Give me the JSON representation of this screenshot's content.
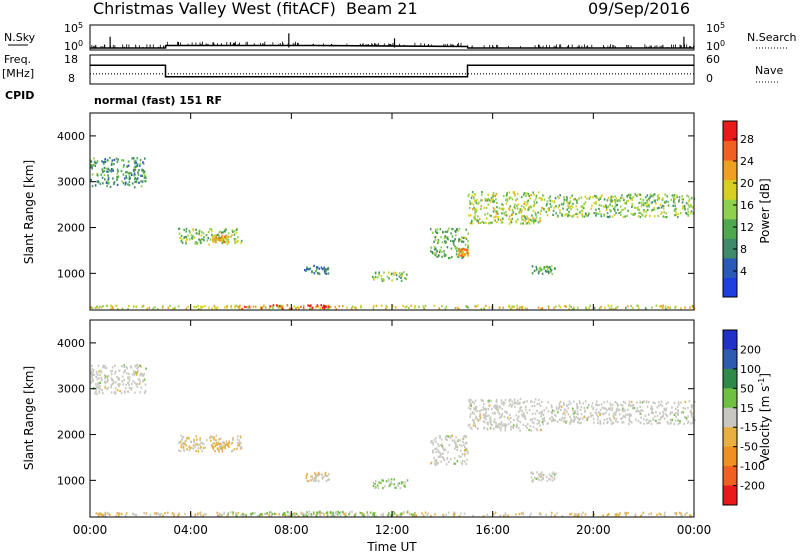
{
  "header": {
    "station": "Christmas Valley West (fitACF)",
    "beam": "Beam 21",
    "date": "09/Sep/2016"
  },
  "left_labels": {
    "nsky": "N.Sky",
    "freq_line1": "Freq.",
    "freq_line2": "[MHz]",
    "cpid": "CPID"
  },
  "right_labels": {
    "nsearch": "N.Search",
    "nave": "Nave"
  },
  "mode_text": "normal (fast) 151 RF",
  "noise_panel": {
    "left_ticks": [
      "10^5",
      "10^0"
    ],
    "right_ticks": [
      "10^5",
      "10^0"
    ]
  },
  "freq_panel": {
    "left_ticks": [
      "18",
      "8"
    ],
    "right_ticks": [
      "60",
      "0"
    ]
  },
  "colors": {
    "power": [
      "#1f3fe0",
      "#2a5ab8",
      "#3f8a6a",
      "#4fa84f",
      "#8fd04f",
      "#d8d020",
      "#f0a020",
      "#f06020",
      "#e81a1a"
    ],
    "velocity": [
      "#2030c8",
      "#2e5ab0",
      "#2f8a4a",
      "#6fc040",
      "#c8c8c0",
      "#e8b040",
      "#f09020",
      "#f06020",
      "#e81a1a"
    ]
  },
  "chart_data": [
    {
      "type": "line",
      "panel": "noise",
      "x": [
        "00:00",
        "03:00",
        "03:01",
        "09:00",
        "15:00",
        "15:01",
        "24:00"
      ],
      "series": [
        {
          "values": [
            0.4,
            0.4,
            0.9,
            0.9,
            0.7,
            0.4,
            0.4
          ]
        }
      ],
      "ylim": [
        0,
        5
      ]
    },
    {
      "type": "line",
      "panel": "frequency",
      "x": [
        "00:00",
        "03:00",
        "03:00",
        "15:00",
        "15:00",
        "24:00"
      ],
      "series": [
        {
          "values": [
            14.5,
            14.5,
            10.5,
            10.5,
            14.5,
            14.5
          ]
        },
        {
          "values": [
            11.5,
            11.5,
            11.5,
            11.5,
            11.5,
            11.5
          ]
        }
      ],
      "ylim": [
        8,
        18
      ]
    },
    {
      "type": "heatmap",
      "panel": "power",
      "xlabel": "Time UT",
      "ylabel": "Slant Range [km]",
      "x_ticks": [
        "00:00",
        "04:00",
        "08:00",
        "12:00",
        "16:00",
        "20:00",
        "00:00"
      ],
      "y_ticks": [
        "1000",
        "2000",
        "3000",
        "4000"
      ],
      "ylim": [
        200,
        4500
      ],
      "colorbar": {
        "label": "Power [dB]",
        "ticks": [
          "4",
          "8",
          "12",
          "16",
          "20",
          "24",
          "28"
        ],
        "range": [
          0,
          30
        ]
      },
      "regions": [
        {
          "t": [
            0.0,
            2.2
          ],
          "r": [
            2900,
            3550
          ],
          "level": 10
        },
        {
          "t": [
            3.5,
            6.0
          ],
          "r": [
            1650,
            2000
          ],
          "level": 14
        },
        {
          "t": [
            4.8,
            5.5
          ],
          "r": [
            1700,
            1850
          ],
          "level": 20
        },
        {
          "t": [
            8.5,
            9.5
          ],
          "r": [
            1000,
            1200
          ],
          "level": 8
        },
        {
          "t": [
            11.2,
            12.6
          ],
          "r": [
            850,
            1050
          ],
          "level": 14
        },
        {
          "t": [
            13.5,
            15.0
          ],
          "r": [
            1350,
            2000
          ],
          "level": 12
        },
        {
          "t": [
            14.6,
            15.0
          ],
          "r": [
            1400,
            1550
          ],
          "level": 22
        },
        {
          "t": [
            15.0,
            18.0
          ],
          "r": [
            2100,
            2800
          ],
          "level": 16
        },
        {
          "t": [
            18.0,
            24.0
          ],
          "r": [
            2250,
            2750
          ],
          "level": 14
        },
        {
          "t": [
            17.5,
            18.5
          ],
          "r": [
            1000,
            1200
          ],
          "level": 12
        },
        {
          "t": [
            0.0,
            24.0
          ],
          "r": [
            240,
            320
          ],
          "level": 18
        },
        {
          "t": [
            6.0,
            9.5
          ],
          "r": [
            240,
            330
          ],
          "level": 26
        }
      ]
    },
    {
      "type": "heatmap",
      "panel": "velocity",
      "xlabel": "Time UT",
      "ylabel": "Slant Range [km]",
      "x_ticks": [
        "00:00",
        "04:00",
        "08:00",
        "12:00",
        "16:00",
        "20:00",
        "00:00"
      ],
      "y_ticks": [
        "1000",
        "2000",
        "3000",
        "4000"
      ],
      "ylim": [
        200,
        4500
      ],
      "colorbar": {
        "label": "Velocity [m s^-1]",
        "ticks": [
          "200",
          "100",
          "50",
          "15",
          "-15",
          "-50",
          "-100",
          "-200"
        ],
        "range": [
          -250,
          250
        ]
      },
      "regions": [
        {
          "t": [
            0.0,
            2.2
          ],
          "r": [
            2900,
            3550
          ],
          "v": 0
        },
        {
          "t": [
            3.5,
            6.0
          ],
          "r": [
            1650,
            2000
          ],
          "v": -20
        },
        {
          "t": [
            4.8,
            5.5
          ],
          "r": [
            1700,
            1850
          ],
          "v": -40
        },
        {
          "t": [
            8.5,
            9.5
          ],
          "r": [
            1000,
            1200
          ],
          "v": -20
        },
        {
          "t": [
            11.2,
            12.6
          ],
          "r": [
            850,
            1050
          ],
          "v": 30
        },
        {
          "t": [
            13.5,
            15.0
          ],
          "r": [
            1350,
            2000
          ],
          "v": 0
        },
        {
          "t": [
            15.0,
            18.0
          ],
          "r": [
            2100,
            2800
          ],
          "v": 0
        },
        {
          "t": [
            18.0,
            24.0
          ],
          "r": [
            2250,
            2750
          ],
          "v": 0
        },
        {
          "t": [
            17.5,
            18.5
          ],
          "r": [
            1000,
            1200
          ],
          "v": 0
        },
        {
          "t": [
            0.0,
            24.0
          ],
          "r": [
            240,
            320
          ],
          "v": -30
        },
        {
          "t": [
            5.0,
            13.0
          ],
          "r": [
            240,
            340
          ],
          "v": 40
        }
      ]
    }
  ]
}
